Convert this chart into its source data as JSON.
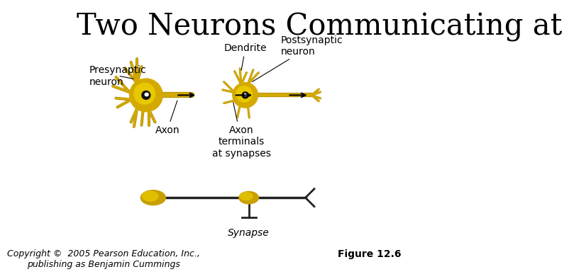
{
  "title": "Two Neurons Communicating at",
  "subtitle_line1": "Copyright ©  2005 Pearson Education, Inc.,",
  "subtitle_line2": "publishing as Benjamin Cummings",
  "figure_label": "Figure 12.6",
  "background_color": "#ffffff",
  "neuron_color": "#d4b800",
  "neuron_color2": "#c8a800",
  "neuron_highlight": "#f0d000",
  "nucleus_color": "#000000",
  "nucleus_eye_color": "#ffffff",
  "axon_color": "#c8a800",
  "labels": {
    "presynaptic": "Presynaptic\nneuron",
    "dendrite": "Dendrite",
    "postsynaptic": "Postsynaptic\nneuron",
    "axon": "Axon",
    "axon_terminals": "Axon\nterminals\nat synapses",
    "synapse": "Synapse"
  },
  "title_fontsize": 30,
  "label_fontsize": 10,
  "copyright_fontsize": 9,
  "figure_label_fontsize": 10
}
